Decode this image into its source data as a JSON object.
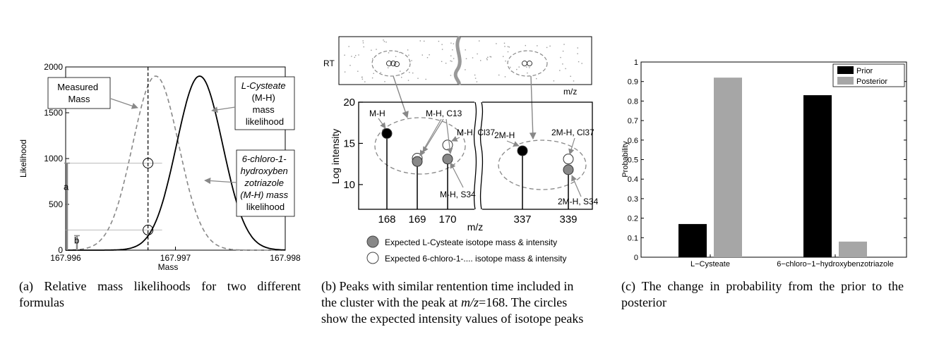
{
  "panel_a": {
    "chart_data": {
      "type": "line",
      "xlabel": "Mass",
      "ylabel": "Likelihood",
      "xlim": [
        167.996,
        167.998
      ],
      "ylim": [
        0,
        2000
      ],
      "x_ticks": [
        "167.996",
        "167.997",
        "167.998"
      ],
      "y_ticks": [
        "0",
        "500",
        "1000",
        "1500",
        "2000"
      ],
      "measured_mass": 167.99675,
      "series": [
        {
          "name": "L-Cysteate (M-H) mass likelihood",
          "style": "solid",
          "color": "#000000",
          "mean": 167.99722,
          "sd": 0.00021,
          "peak": 1900
        },
        {
          "name": "6-chloro-1-hydroxybenzotriazole (M-H) mass likelihood",
          "style": "dashed",
          "color": "#888888",
          "mean": 167.99682,
          "sd": 0.00021,
          "peak": 1900
        }
      ],
      "marked_values": [
        950,
        220
      ],
      "annotations": {
        "measured": [
          "Measured",
          "Mass"
        ],
        "cysteate": [
          "L-Cysteate",
          "(M-H)",
          "mass",
          "likelihood"
        ],
        "chloro": [
          "6-chloro-1-",
          "hydroxyben",
          "zotriazole",
          "(M-H) mass",
          "likelihood"
        ],
        "a": "a",
        "b": "b"
      }
    },
    "caption": "(a) Relative mass likelihoods for two different formulas"
  },
  "panel_b": {
    "chart_data": {
      "type": "scatter",
      "top_labels": {
        "y": "RT",
        "x": "m/z"
      },
      "xlabel": "m/z",
      "ylabel": "Log intensity",
      "ylim": [
        7,
        20
      ],
      "y_ticks": [
        "10",
        "15",
        "20"
      ],
      "x_ticks": [
        "168",
        "169",
        "170",
        "337",
        "339"
      ],
      "peaks": [
        {
          "label": "168",
          "intensity": 16.2,
          "kind": "observed"
        },
        {
          "label": "169",
          "intensity": 12.8,
          "kind": "expected-cysteate"
        },
        {
          "label": "169",
          "intensity": 13.2,
          "kind": "expected-chloro"
        },
        {
          "label": "170",
          "intensity": 13.1,
          "kind": "expected-cysteate"
        },
        {
          "label": "170",
          "intensity": 14.8,
          "kind": "expected-chloro"
        },
        {
          "label": "337",
          "intensity": 14.1,
          "kind": "observed"
        },
        {
          "label": "339",
          "intensity": 11.8,
          "kind": "expected-cysteate"
        },
        {
          "label": "339",
          "intensity": 13.1,
          "kind": "expected-chloro"
        }
      ],
      "annotations": {
        "mh": "M-H",
        "mh_c13": "M-H, C13",
        "mh_cl37": "M-H, Cl37",
        "mh_s34": "M-H, S34",
        "twomh": "2M-H",
        "twomh_cl37": "2M-H, Cl37",
        "twomh_s34": "2M-H, S34"
      },
      "legend": [
        {
          "label": "Expected L-Cysteate isotope mass & intensity",
          "color": "#888888"
        },
        {
          "label": "Expected 6-chloro-1-.... isotope mass & intensity",
          "color": "#ffffff"
        }
      ]
    },
    "caption_lines": [
      "(b) Peaks with similar rentention time included in",
      "the cluster with the peak at",
      "m/z",
      "=168. The circles",
      "show the expected intensity values of isotope peaks"
    ]
  },
  "panel_c": {
    "chart_data": {
      "type": "bar",
      "categories": [
        "L−Cysteate",
        "6−chloro−1−hydroxybenzotriazole"
      ],
      "series": [
        {
          "name": "Prior",
          "values": [
            0.17,
            0.83
          ],
          "color": "#000000"
        },
        {
          "name": "Posterior",
          "values": [
            0.92,
            0.08
          ],
          "color": "#a6a6a6"
        }
      ],
      "ylabel": "Probability",
      "ylim": [
        0,
        1
      ],
      "y_ticks": [
        "0",
        "0.1",
        "0.2",
        "0.3",
        "0.4",
        "0.5",
        "0.6",
        "0.7",
        "0.8",
        "0.9",
        "1"
      ],
      "legend_position": "top-right"
    },
    "caption": "(c) The change in probability from the prior to the posterior"
  }
}
